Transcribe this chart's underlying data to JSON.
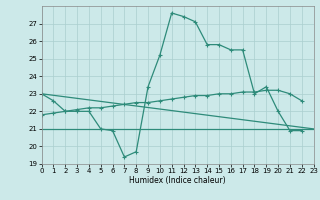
{
  "xlabel": "Humidex (Indice chaleur)",
  "x": [
    0,
    1,
    2,
    3,
    4,
    5,
    6,
    7,
    8,
    9,
    10,
    11,
    12,
    13,
    14,
    15,
    16,
    17,
    18,
    19,
    20,
    21,
    22,
    23
  ],
  "line1": [
    23.0,
    22.6,
    22.0,
    22.0,
    22.0,
    21.0,
    20.9,
    19.4,
    19.7,
    23.4,
    25.2,
    27.6,
    27.4,
    27.1,
    25.8,
    25.8,
    25.5,
    25.5,
    23.0,
    23.4,
    22.0,
    20.9,
    20.9,
    null
  ],
  "line2_x": [
    0,
    23
  ],
  "line2_y": [
    23.0,
    21.0
  ],
  "line3": [
    21.0,
    21.0,
    21.0,
    21.0,
    21.0,
    21.0,
    21.0,
    21.0,
    21.0,
    21.0,
    21.0,
    21.0,
    21.0,
    21.0,
    21.0,
    21.0,
    21.0,
    21.0,
    21.0,
    21.0,
    21.0,
    21.0,
    21.0,
    21.0
  ],
  "line4": [
    21.8,
    21.9,
    22.0,
    22.1,
    22.2,
    22.2,
    22.3,
    22.4,
    22.5,
    22.5,
    22.6,
    22.7,
    22.8,
    22.9,
    22.9,
    23.0,
    23.0,
    23.1,
    23.1,
    23.2,
    23.2,
    23.0,
    22.6,
    null
  ],
  "color": "#2e8b7a",
  "bg_color": "#cce9e9",
  "grid_color": "#aacfcf",
  "ylim": [
    19,
    28
  ],
  "yticks": [
    19,
    20,
    21,
    22,
    23,
    24,
    25,
    26,
    27
  ],
  "xlim": [
    0,
    23
  ],
  "xticks": [
    0,
    1,
    2,
    3,
    4,
    5,
    6,
    7,
    8,
    9,
    10,
    11,
    12,
    13,
    14,
    15,
    16,
    17,
    18,
    19,
    20,
    21,
    22,
    23
  ]
}
